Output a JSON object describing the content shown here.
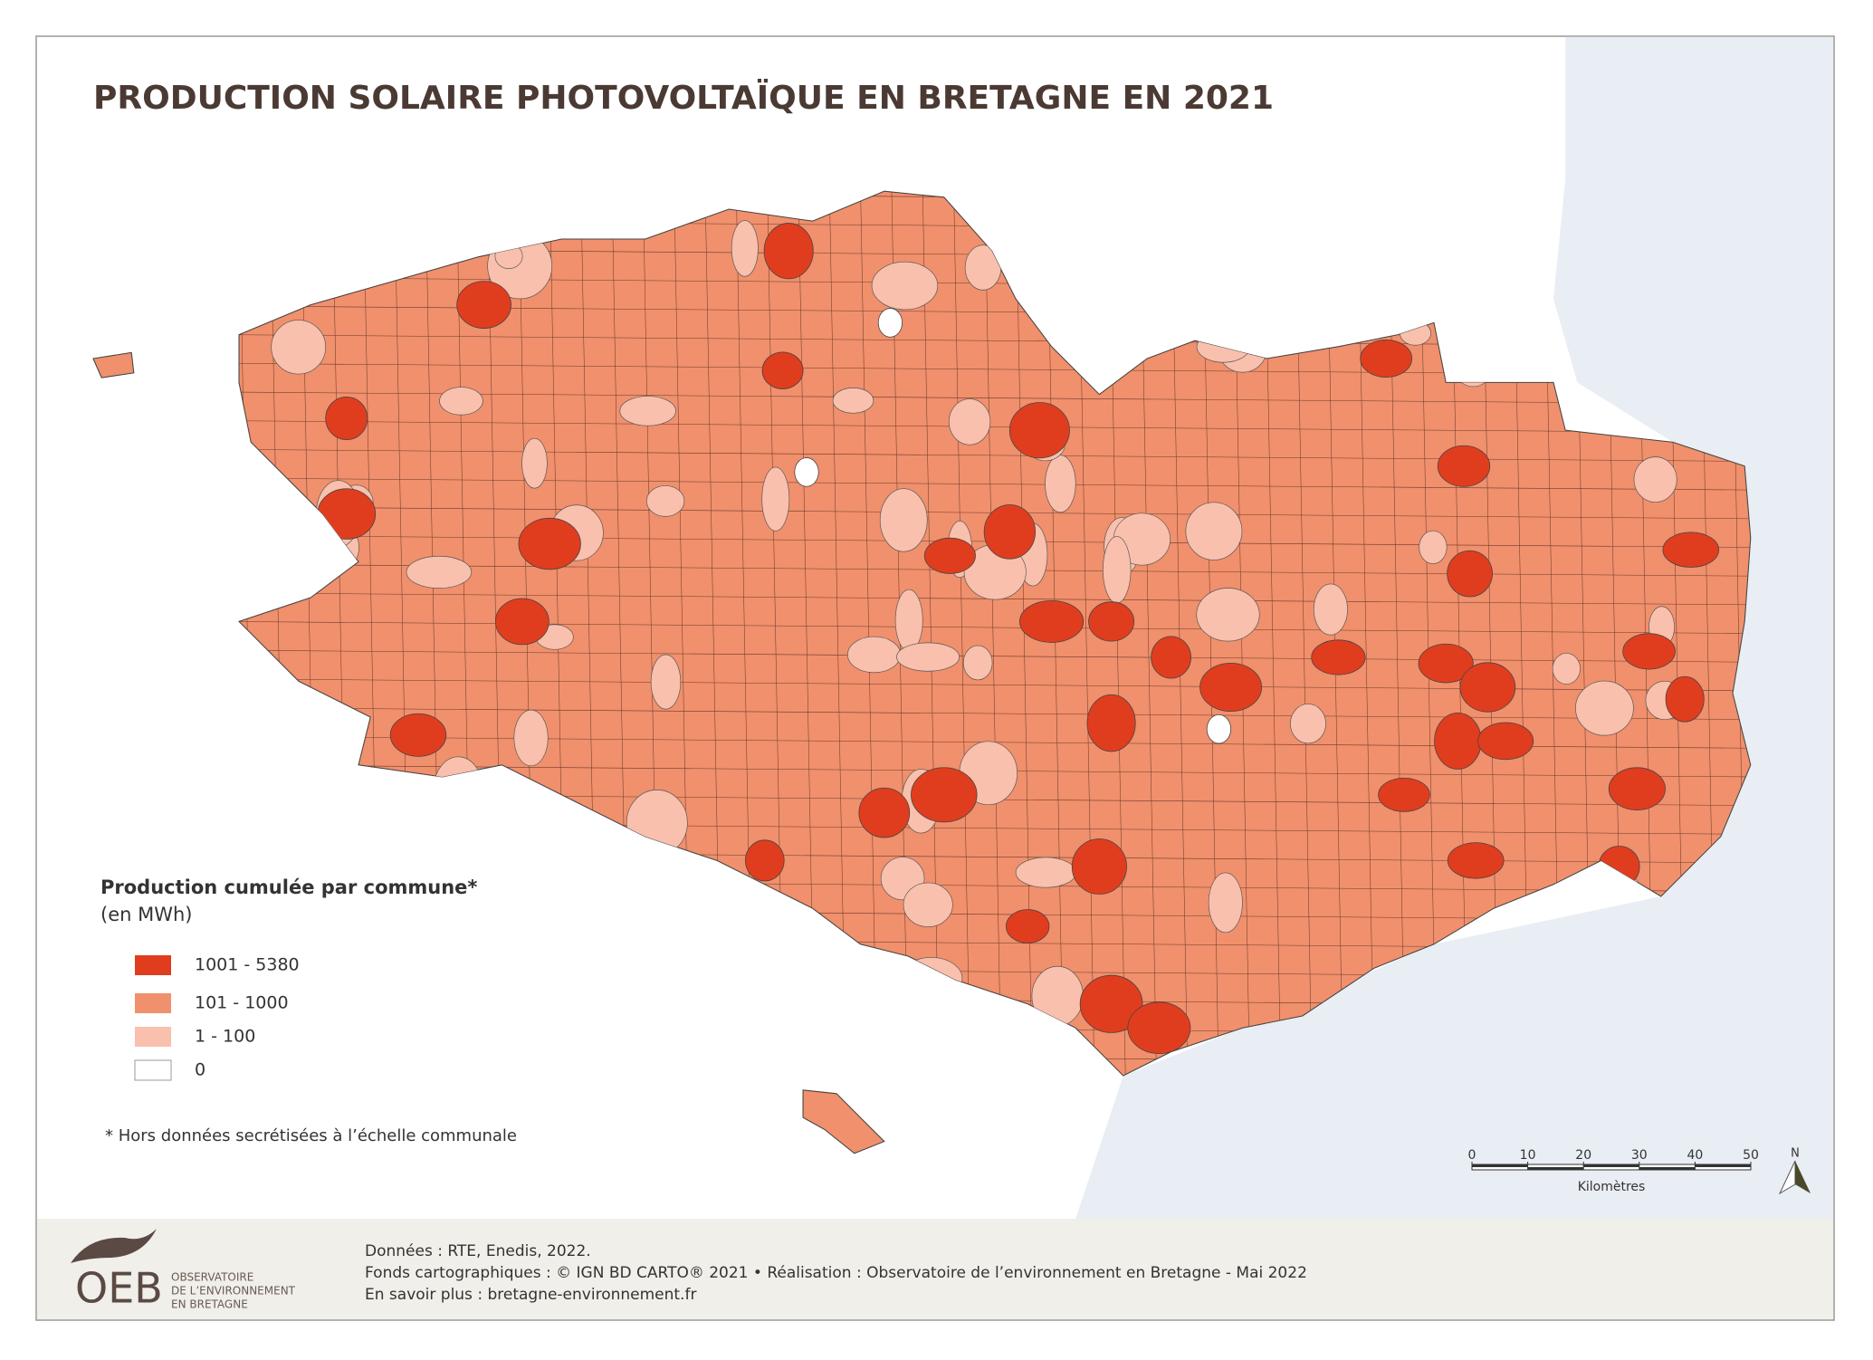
{
  "header": {
    "title": "PRODUCTION SOLAIRE PHOTOVOLTAÏQUE EN BRETAGNE EN 2021"
  },
  "legend": {
    "title": "Production cumulée par commune*",
    "subtitle": "(en MWh)",
    "classes": [
      {
        "label": "1001 - 5380",
        "color": "#e03d1f"
      },
      {
        "label": "101 - 1000",
        "color": "#f0906c"
      },
      {
        "label": "1 - 100",
        "color": "#f8c0ad"
      },
      {
        "label": "0",
        "color": "#ffffff"
      }
    ]
  },
  "footnote": "* Hors données secrétisées à l’échelle communale",
  "scale_bar": {
    "ticks": [
      0,
      10,
      20,
      30,
      40,
      50
    ],
    "unit": "Kilomètres",
    "north": "N"
  },
  "footer": {
    "lines": [
      "Données : RTE, Enedis, 2022.",
      "Fonds cartographiques : © IGN BD CARTO® 2021 • Réalisation : Observatoire de l’environnement en Bretagne - Mai 2022",
      "En savoir plus : bretagne-environnement.fr"
    ],
    "logo": {
      "acronym": "OEB",
      "name_lines": [
        "OBSERVATOIRE",
        "DE L’ENVIRONNEMENT",
        "EN BRETAGNE"
      ]
    }
  }
}
